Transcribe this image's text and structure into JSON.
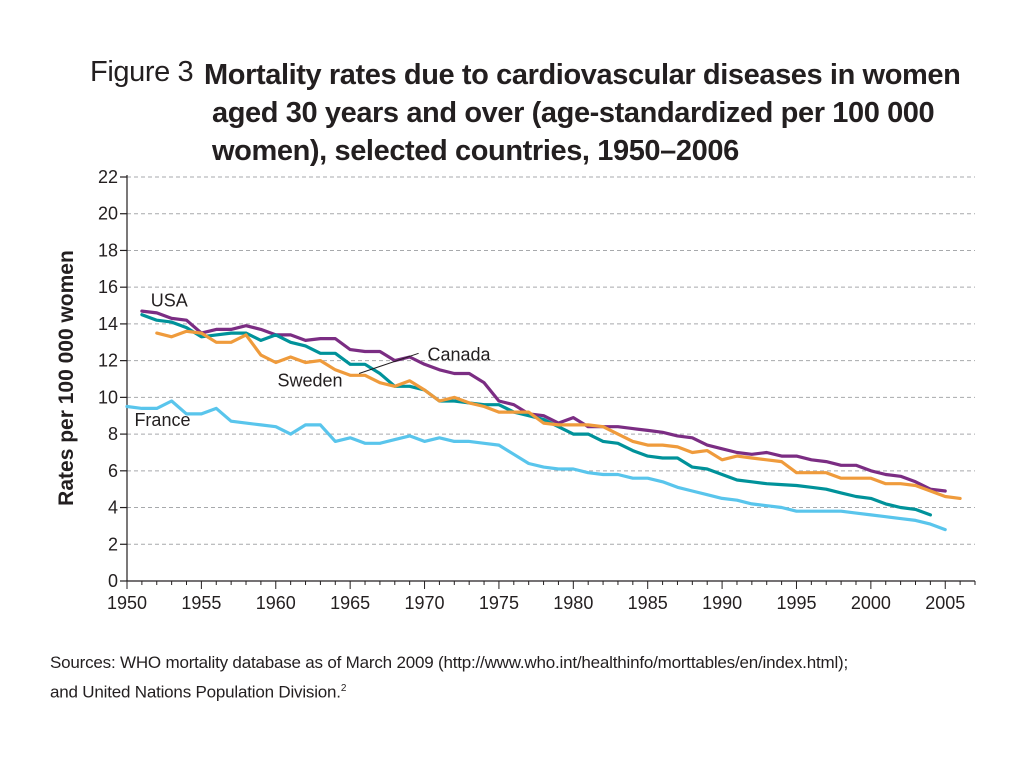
{
  "figure_label": "Figure 3",
  "title": "Mortality rates due to cardiovascular diseases in women aged 30 years and over (age-standardized per 100 000 women), selected countries, 1950–2006",
  "source": {
    "text": "Sources: WHO mortality database as of March 2009 (http://www.who.int/healthinfo/morttables/en/index.html);",
    "text2": "and United Nations Population Division.",
    "note": "2"
  },
  "chart_data": {
    "type": "line",
    "title": "Mortality rates due to cardiovascular diseases in women aged 30 years and over (age-standardized per 100 000 women), selected countries, 1950–2006",
    "xlabel": "",
    "ylabel": "Rates per 100 000 women",
    "xlim": [
      1950,
      2007
    ],
    "ylim": [
      0,
      22
    ],
    "xticks": [
      1950,
      1955,
      1960,
      1965,
      1970,
      1975,
      1980,
      1985,
      1990,
      1995,
      2000,
      2005
    ],
    "yticks": [
      0,
      2,
      4,
      6,
      8,
      10,
      12,
      14,
      16,
      18,
      20,
      22
    ],
    "grid": "horizontal dashed",
    "series": [
      {
        "name": "USA",
        "color": "#7b2d83",
        "x": [
          1951,
          1952,
          1953,
          1954,
          1955,
          1956,
          1957,
          1958,
          1959,
          1960,
          1961,
          1962,
          1963,
          1964,
          1965,
          1966,
          1967,
          1968,
          1969,
          1970,
          1971,
          1972,
          1973,
          1974,
          1975,
          1976,
          1977,
          1978,
          1979,
          1980,
          1981,
          1982,
          1983,
          1984,
          1985,
          1986,
          1987,
          1988,
          1989,
          1990,
          1991,
          1992,
          1993,
          1994,
          1995,
          1996,
          1997,
          1998,
          1999,
          2000,
          2001,
          2002,
          2003,
          2004,
          2005
        ],
        "values": [
          14.7,
          14.6,
          14.3,
          14.2,
          13.5,
          13.7,
          13.7,
          13.9,
          13.7,
          13.4,
          13.4,
          13.1,
          13.2,
          13.2,
          12.6,
          12.5,
          12.5,
          12.0,
          12.2,
          11.8,
          11.5,
          11.3,
          11.3,
          10.8,
          9.8,
          9.6,
          9.1,
          9.0,
          8.6,
          8.9,
          8.4,
          8.4,
          8.4,
          8.3,
          8.2,
          8.1,
          7.9,
          7.8,
          7.4,
          7.2,
          7.0,
          6.9,
          7.0,
          6.8,
          6.8,
          6.6,
          6.5,
          6.3,
          6.3,
          6.0,
          5.8,
          5.7,
          5.4,
          5.0,
          4.9
        ]
      },
      {
        "name": "Sweden",
        "color": "#00929a",
        "x": [
          1951,
          1952,
          1953,
          1954,
          1955,
          1956,
          1957,
          1958,
          1959,
          1960,
          1961,
          1962,
          1963,
          1964,
          1965,
          1966,
          1967,
          1968,
          1969,
          1970,
          1971,
          1972,
          1973,
          1974,
          1975,
          1976,
          1977,
          1978,
          1979,
          1980,
          1981,
          1982,
          1983,
          1984,
          1985,
          1986,
          1987,
          1988,
          1989,
          1990,
          1991,
          1992,
          1993,
          1994,
          1995,
          1996,
          1997,
          1998,
          1999,
          2000,
          2001,
          2002,
          2003,
          2004
        ],
        "values": [
          14.5,
          14.2,
          14.1,
          13.8,
          13.3,
          13.4,
          13.5,
          13.5,
          13.1,
          13.4,
          13.0,
          12.8,
          12.4,
          12.4,
          11.8,
          11.8,
          11.3,
          10.6,
          10.6,
          10.4,
          9.8,
          9.8,
          9.7,
          9.6,
          9.6,
          9.2,
          9.0,
          8.8,
          8.4,
          8.0,
          8.0,
          7.6,
          7.5,
          7.1,
          6.8,
          6.7,
          6.7,
          6.2,
          6.1,
          5.8,
          5.5,
          5.4,
          5.3,
          5.25,
          5.2,
          5.1,
          5.0,
          4.8,
          4.6,
          4.5,
          4.2,
          4.0,
          3.9,
          3.6
        ]
      },
      {
        "name": "Canada",
        "color": "#ef9b3c",
        "x": [
          1952,
          1953,
          1954,
          1955,
          1956,
          1957,
          1958,
          1959,
          1960,
          1961,
          1962,
          1963,
          1964,
          1965,
          1966,
          1967,
          1968,
          1969,
          1970,
          1971,
          1972,
          1973,
          1974,
          1975,
          1976,
          1977,
          1978,
          1979,
          1980,
          1981,
          1982,
          1983,
          1984,
          1985,
          1986,
          1987,
          1988,
          1989,
          1990,
          1991,
          1992,
          1993,
          1994,
          1995,
          1996,
          1997,
          1998,
          1999,
          2000,
          2001,
          2002,
          2003,
          2004,
          2005,
          2006
        ],
        "values": [
          13.5,
          13.3,
          13.6,
          13.5,
          13.0,
          13.0,
          13.4,
          12.3,
          11.9,
          12.2,
          11.9,
          12.0,
          11.5,
          11.2,
          11.2,
          10.8,
          10.6,
          10.9,
          10.4,
          9.8,
          10.0,
          9.7,
          9.5,
          9.2,
          9.2,
          9.2,
          8.6,
          8.5,
          8.5,
          8.5,
          8.4,
          8.0,
          7.6,
          7.4,
          7.4,
          7.3,
          7.0,
          7.1,
          6.6,
          6.8,
          6.7,
          6.6,
          6.5,
          5.9,
          5.9,
          5.9,
          5.6,
          5.6,
          5.6,
          5.3,
          5.3,
          5.2,
          4.9,
          4.6,
          4.5
        ]
      },
      {
        "name": "France",
        "color": "#59c5ec",
        "x": [
          1950,
          1951,
          1952,
          1953,
          1954,
          1955,
          1956,
          1957,
          1958,
          1959,
          1960,
          1961,
          1962,
          1963,
          1964,
          1965,
          1966,
          1967,
          1968,
          1969,
          1970,
          1971,
          1972,
          1973,
          1974,
          1975,
          1976,
          1977,
          1978,
          1979,
          1980,
          1981,
          1982,
          1983,
          1984,
          1985,
          1986,
          1987,
          1988,
          1989,
          1990,
          1991,
          1992,
          1993,
          1994,
          1995,
          1996,
          1997,
          1998,
          1999,
          2000,
          2001,
          2002,
          2003,
          2004,
          2005
        ],
        "values": [
          9.5,
          9.4,
          9.4,
          9.8,
          9.1,
          9.1,
          9.4,
          8.7,
          8.6,
          8.5,
          8.4,
          8.0,
          8.5,
          8.5,
          7.6,
          7.8,
          7.5,
          7.5,
          7.7,
          7.9,
          7.6,
          7.8,
          7.6,
          7.6,
          7.5,
          7.4,
          6.9,
          6.4,
          6.2,
          6.1,
          6.1,
          5.9,
          5.8,
          5.8,
          5.6,
          5.6,
          5.4,
          5.1,
          4.9,
          4.7,
          4.5,
          4.4,
          4.2,
          4.1,
          4.0,
          3.8,
          3.8,
          3.8,
          3.8,
          3.7,
          3.6,
          3.5,
          3.4,
          3.3,
          3.1,
          2.8
        ]
      }
    ]
  }
}
